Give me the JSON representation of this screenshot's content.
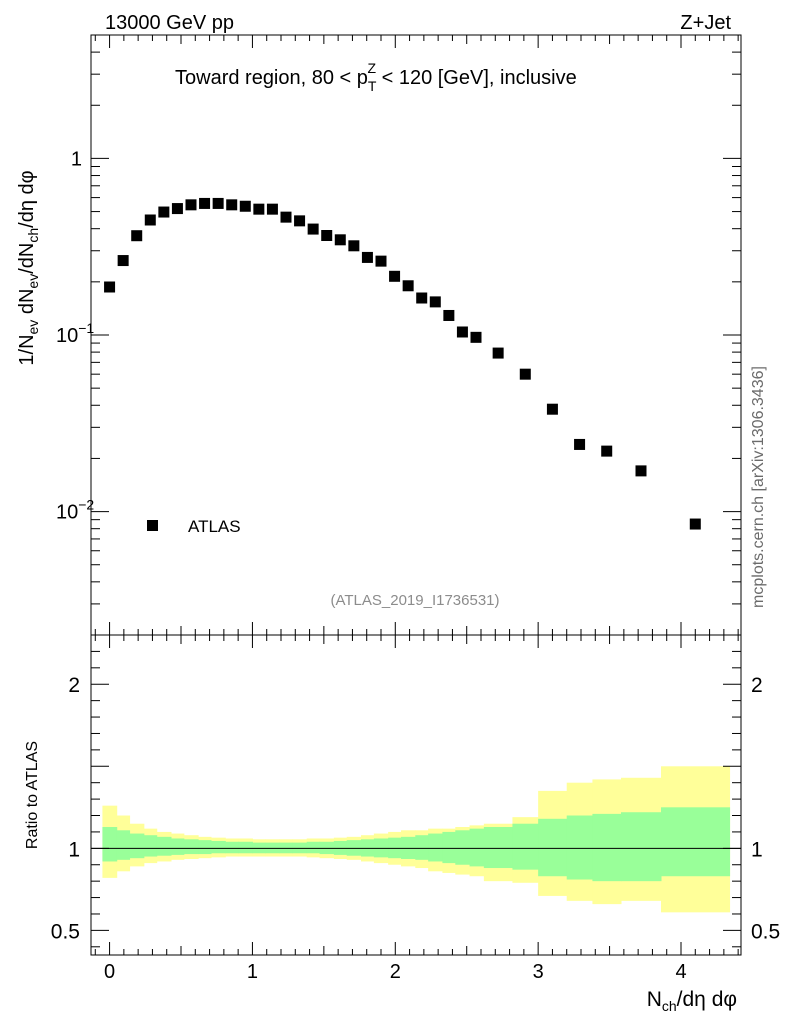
{
  "header": {
    "energy": "13000 GeV pp",
    "process": "Z+Jet"
  },
  "side_label": "mcplots.cern.ch [arXiv:1306.3436]",
  "chart_data": {
    "type": "scatter",
    "title_parts": {
      "pre": "Toward region, 80 < p",
      "sub": "T",
      "sup": "Z",
      "post": " < 120 [GeV], inclusive"
    },
    "ylabel": "1/N_ev dN_ev/dN_ch/dη dφ",
    "xlabel": "N_ch/dη dφ",
    "ratio_ylabel": "Ratio to ATLAS",
    "analysis_id": "(ATLAS_2019_I1736531)",
    "legend": [
      {
        "name": "ATLAS",
        "marker": "square",
        "color": "#000000"
      }
    ],
    "xlim": [
      -0.13,
      4.42
    ],
    "ylim_log": [
      0.002,
      5
    ],
    "ratio_ylim": [
      0.35,
      2.3
    ],
    "x_ticks": [
      "0",
      "1",
      "2",
      "3",
      "4"
    ],
    "y_ticks": [
      {
        "value": 1,
        "label": "1"
      },
      {
        "value": 0.1,
        "label": "10",
        "exp": "−1"
      },
      {
        "value": 0.01,
        "label": "10",
        "exp": "−2"
      }
    ],
    "ratio_ticks": [
      {
        "value": 0.5,
        "label": "0.5"
      },
      {
        "value": 1,
        "label": "1"
      },
      {
        "value": 2,
        "label": "2"
      }
    ],
    "series": [
      {
        "name": "ATLAS",
        "x": [
          0.0,
          0.095,
          0.19,
          0.285,
          0.38,
          0.475,
          0.57,
          0.665,
          0.76,
          0.855,
          0.95,
          1.045,
          1.14,
          1.235,
          1.33,
          1.425,
          1.52,
          1.615,
          1.71,
          1.805,
          1.9,
          1.995,
          2.09,
          2.185,
          2.28,
          2.375,
          2.47,
          2.565,
          2.72,
          2.91,
          3.1,
          3.29,
          3.48,
          3.72,
          4.1
        ],
        "y": [
          0.187,
          0.264,
          0.365,
          0.448,
          0.497,
          0.52,
          0.546,
          0.556,
          0.556,
          0.546,
          0.536,
          0.516,
          0.516,
          0.465,
          0.443,
          0.398,
          0.366,
          0.346,
          0.32,
          0.275,
          0.262,
          0.215,
          0.19,
          0.162,
          0.154,
          0.129,
          0.104,
          0.097,
          0.079,
          0.06,
          0.038,
          0.024,
          0.022,
          0.017,
          0.0085
        ]
      }
    ],
    "uncertainty_bands": {
      "x_edges": [
        -0.05,
        0.05,
        0.14,
        0.24,
        0.33,
        0.43,
        0.52,
        0.62,
        0.71,
        0.81,
        0.9,
        1.0,
        1.09,
        1.19,
        1.28,
        1.38,
        1.47,
        1.57,
        1.66,
        1.76,
        1.85,
        1.95,
        2.04,
        2.14,
        2.23,
        2.33,
        2.42,
        2.52,
        2.62,
        2.82,
        3.0,
        3.2,
        3.38,
        3.58,
        3.86,
        4.34
      ],
      "inner_up": [
        1.13,
        1.11,
        1.09,
        1.08,
        1.07,
        1.06,
        1.055,
        1.05,
        1.045,
        1.04,
        1.04,
        1.035,
        1.035,
        1.035,
        1.035,
        1.04,
        1.04,
        1.045,
        1.05,
        1.055,
        1.06,
        1.065,
        1.07,
        1.08,
        1.09,
        1.1,
        1.11,
        1.12,
        1.13,
        1.15,
        1.18,
        1.2,
        1.21,
        1.22,
        1.25
      ],
      "inner_lo": [
        0.92,
        0.93,
        0.94,
        0.95,
        0.955,
        0.96,
        0.965,
        0.965,
        0.97,
        0.97,
        0.97,
        0.97,
        0.97,
        0.97,
        0.97,
        0.97,
        0.965,
        0.96,
        0.955,
        0.95,
        0.945,
        0.94,
        0.935,
        0.93,
        0.92,
        0.91,
        0.9,
        0.89,
        0.88,
        0.87,
        0.83,
        0.81,
        0.8,
        0.8,
        0.83
      ],
      "outer_up": [
        1.26,
        1.2,
        1.15,
        1.12,
        1.1,
        1.09,
        1.08,
        1.07,
        1.065,
        1.06,
        1.06,
        1.055,
        1.055,
        1.055,
        1.055,
        1.06,
        1.06,
        1.065,
        1.07,
        1.08,
        1.09,
        1.1,
        1.11,
        1.11,
        1.12,
        1.12,
        1.13,
        1.14,
        1.15,
        1.19,
        1.35,
        1.4,
        1.42,
        1.43,
        1.5
      ],
      "outer_lo": [
        0.82,
        0.86,
        0.89,
        0.91,
        0.92,
        0.93,
        0.935,
        0.94,
        0.945,
        0.95,
        0.95,
        0.95,
        0.95,
        0.95,
        0.95,
        0.945,
        0.94,
        0.935,
        0.93,
        0.92,
        0.91,
        0.9,
        0.89,
        0.88,
        0.86,
        0.85,
        0.84,
        0.83,
        0.8,
        0.79,
        0.71,
        0.68,
        0.66,
        0.68,
        0.61
      ],
      "inner_color": "#99ff99",
      "outer_color": "#ffff99"
    }
  }
}
